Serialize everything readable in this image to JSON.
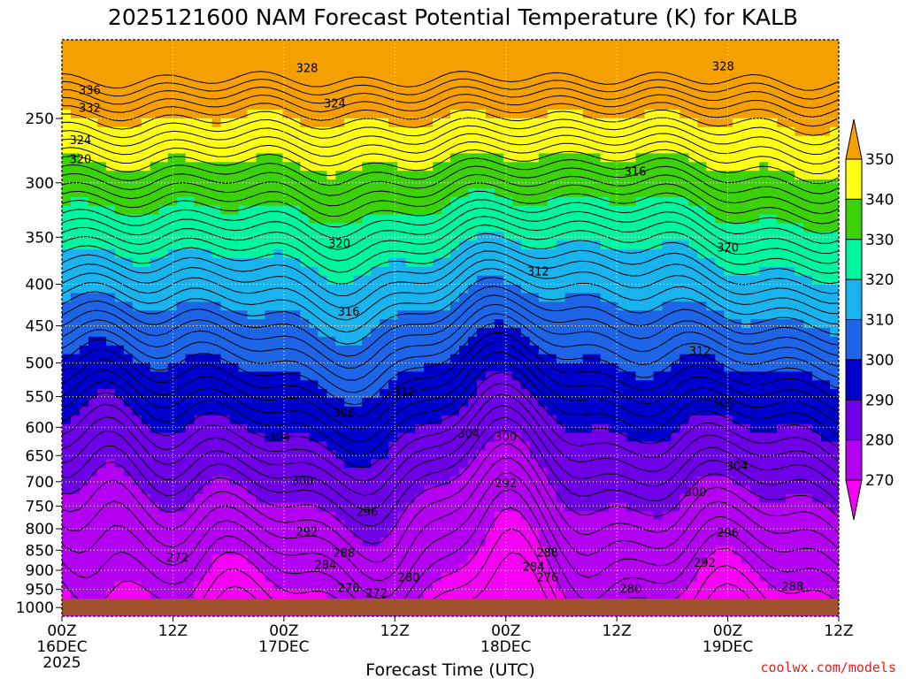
{
  "chart_data": {
    "type": "contour",
    "title": "2025121600 NAM Forecast Potential Temperature (K) for KALB",
    "xlabel": "Forecast Time (UTC)",
    "ylabel": "",
    "credit": "coolwx.com/models",
    "variable": "Potential Temperature (K)",
    "x_ticks": [
      {
        "label": "00Z",
        "date": "16DEC",
        "year": "2025",
        "hour": 0
      },
      {
        "label": "12Z",
        "hour": 12
      },
      {
        "label": "00Z",
        "date": "17DEC",
        "hour": 24
      },
      {
        "label": "12Z",
        "hour": 36
      },
      {
        "label": "00Z",
        "date": "18DEC",
        "hour": 48
      },
      {
        "label": "12Z",
        "hour": 60
      },
      {
        "label": "00Z",
        "date": "19DEC",
        "hour": 72
      },
      {
        "label": "12Z",
        "hour": 84
      }
    ],
    "xlim": [
      0,
      84
    ],
    "y_ticks": [
      250,
      300,
      350,
      400,
      450,
      500,
      550,
      600,
      650,
      700,
      750,
      800,
      850,
      900,
      950,
      1000
    ],
    "ylim": [
      1025,
      200
    ],
    "y_scale": "log pressure (hPa)",
    "colorbar": {
      "levels": [
        270,
        280,
        290,
        300,
        310,
        320,
        330,
        340,
        350
      ],
      "colors": [
        "#f500f5",
        "#b400f0",
        "#6e00e6",
        "#0000cd",
        "#1e64e6",
        "#19b4ee",
        "#00f5a0",
        "#3cd20a",
        "#ffff14",
        "#f5a000"
      ]
    },
    "contour_interval": 2,
    "contour_labels": [
      {
        "value": 336,
        "hour": 3.0,
        "p": 231
      },
      {
        "value": 332,
        "hour": 3.0,
        "p": 243
      },
      {
        "value": 328,
        "hour": 26.5,
        "p": 217
      },
      {
        "value": 328,
        "hour": 71.5,
        "p": 216
      },
      {
        "value": 324,
        "hour": 2.0,
        "p": 266
      },
      {
        "value": 320,
        "hour": 2.0,
        "p": 281
      },
      {
        "value": 324,
        "hour": 29.5,
        "p": 240
      },
      {
        "value": 316,
        "hour": 62.0,
        "p": 291
      },
      {
        "value": 320,
        "hour": 30.0,
        "p": 357
      },
      {
        "value": 320,
        "hour": 72.0,
        "p": 361
      },
      {
        "value": 312,
        "hour": 51.5,
        "p": 386
      },
      {
        "value": 316,
        "hour": 31.0,
        "p": 433
      },
      {
        "value": 312,
        "hour": 69.0,
        "p": 484
      },
      {
        "value": 312,
        "hour": 37.0,
        "p": 543
      },
      {
        "value": 308,
        "hour": 30.5,
        "p": 577
      },
      {
        "value": 308,
        "hour": 71.5,
        "p": 561
      },
      {
        "value": 304,
        "hour": 23.5,
        "p": 618
      },
      {
        "value": 304,
        "hour": 44.0,
        "p": 612
      },
      {
        "value": 300,
        "hour": 48.0,
        "p": 617
      },
      {
        "value": 304,
        "hour": 73.0,
        "p": 670
      },
      {
        "value": 300,
        "hour": 26.0,
        "p": 699
      },
      {
        "value": 292,
        "hour": 48.0,
        "p": 704
      },
      {
        "value": 300,
        "hour": 68.5,
        "p": 722
      },
      {
        "value": 296,
        "hour": 33.0,
        "p": 764
      },
      {
        "value": 292,
        "hour": 26.5,
        "p": 808
      },
      {
        "value": 296,
        "hour": 72.0,
        "p": 810
      },
      {
        "value": 288,
        "hour": 30.5,
        "p": 858
      },
      {
        "value": 288,
        "hour": 52.5,
        "p": 857
      },
      {
        "value": 272,
        "hour": 12.5,
        "p": 869
      },
      {
        "value": 284,
        "hour": 28.5,
        "p": 887
      },
      {
        "value": 284,
        "hour": 51.0,
        "p": 892
      },
      {
        "value": 292,
        "hour": 69.5,
        "p": 882
      },
      {
        "value": 276,
        "hour": 52.5,
        "p": 919
      },
      {
        "value": 280,
        "hour": 37.5,
        "p": 919
      },
      {
        "value": 276,
        "hour": 31.0,
        "p": 947
      },
      {
        "value": 272,
        "hour": 34.0,
        "p": 961
      },
      {
        "value": 280,
        "hour": 61.5,
        "p": 949
      },
      {
        "value": 288,
        "hour": 79.0,
        "p": 944
      }
    ]
  }
}
